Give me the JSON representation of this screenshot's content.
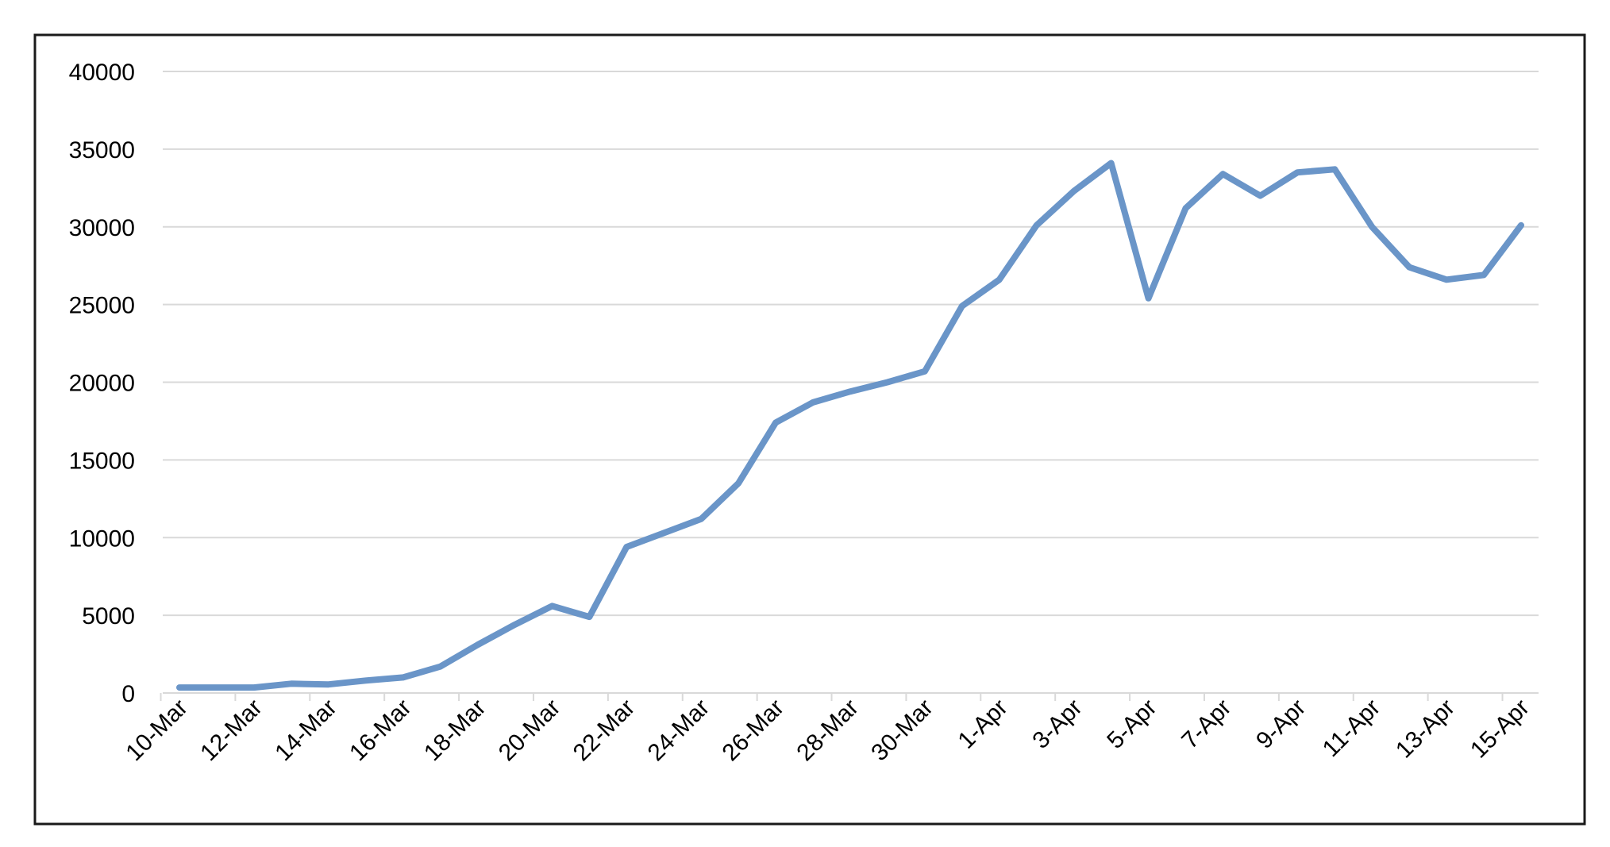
{
  "chart_data": {
    "type": "line",
    "title": "",
    "xlabel": "",
    "ylabel": "",
    "ylim": [
      0,
      40000
    ],
    "y_ticks": [
      0,
      5000,
      10000,
      15000,
      20000,
      25000,
      30000,
      35000,
      40000
    ],
    "y_tick_labels": [
      "0",
      "5000",
      "10000",
      "15000",
      "20000",
      "25000",
      "30000",
      "35000",
      "40000"
    ],
    "x_tick_labels": [
      "10-Mar",
      "12-Mar",
      "14-Mar",
      "16-Mar",
      "18-Mar",
      "20-Mar",
      "22-Mar",
      "24-Mar",
      "26-Mar",
      "28-Mar",
      "30-Mar",
      "1-Apr",
      "3-Apr",
      "5-Apr",
      "7-Apr",
      "9-Apr",
      "11-Apr",
      "13-Apr",
      "15-Apr"
    ],
    "grid": true,
    "legend": false,
    "x": [
      "10-Mar",
      "11-Mar",
      "12-Mar",
      "13-Mar",
      "14-Mar",
      "15-Mar",
      "16-Mar",
      "17-Mar",
      "18-Mar",
      "19-Mar",
      "20-Mar",
      "21-Mar",
      "22-Mar",
      "23-Mar",
      "24-Mar",
      "25-Mar",
      "26-Mar",
      "27-Mar",
      "28-Mar",
      "29-Mar",
      "30-Mar",
      "31-Mar",
      "1-Apr",
      "2-Apr",
      "3-Apr",
      "4-Apr",
      "5-Apr",
      "6-Apr",
      "7-Apr",
      "8-Apr",
      "9-Apr",
      "10-Apr",
      "11-Apr",
      "12-Apr",
      "13-Apr",
      "14-Apr",
      "15-Apr"
    ],
    "series": [
      {
        "color": "#6a95c8",
        "values": [
          350,
          350,
          350,
          600,
          550,
          800,
          1000,
          1700,
          3100,
          4400,
          5600,
          4900,
          9400,
          10300,
          11200,
          13500,
          17400,
          18700,
          19400,
          20000,
          20700,
          24900,
          26600,
          30100,
          32300,
          34100,
          25400,
          31200,
          33400,
          32000,
          33500,
          33700,
          30000,
          27400,
          26600,
          26900,
          30100
        ]
      }
    ]
  }
}
